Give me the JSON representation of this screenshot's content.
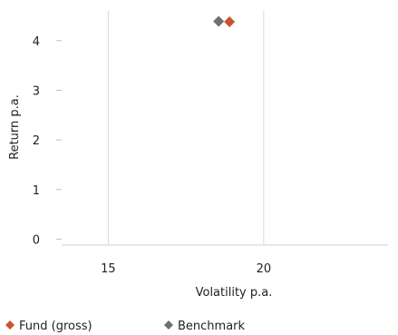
{
  "chart_data": {
    "type": "scatter",
    "xlabel": "Volatility p.a.",
    "ylabel": "Return p.a.",
    "xlim": [
      13.5,
      24.0
    ],
    "ylim": [
      -0.12,
      4.6
    ],
    "x_ticks": [
      15,
      20
    ],
    "y_ticks": [
      0,
      1,
      2,
      3,
      4
    ],
    "x_tick_labels": [
      "15",
      "20"
    ],
    "y_tick_labels": [
      "0",
      "1",
      "2",
      "3",
      "4"
    ],
    "grid": true,
    "legend_position": "bottom",
    "series": [
      {
        "name": "Fund (gross)",
        "color": "#c9542b",
        "marker": "diamond",
        "x": [
          18.9
        ],
        "y": [
          4.38
        ]
      },
      {
        "name": "Benchmark",
        "color": "#707070",
        "marker": "diamond",
        "x": [
          18.55
        ],
        "y": [
          4.39
        ]
      }
    ]
  }
}
